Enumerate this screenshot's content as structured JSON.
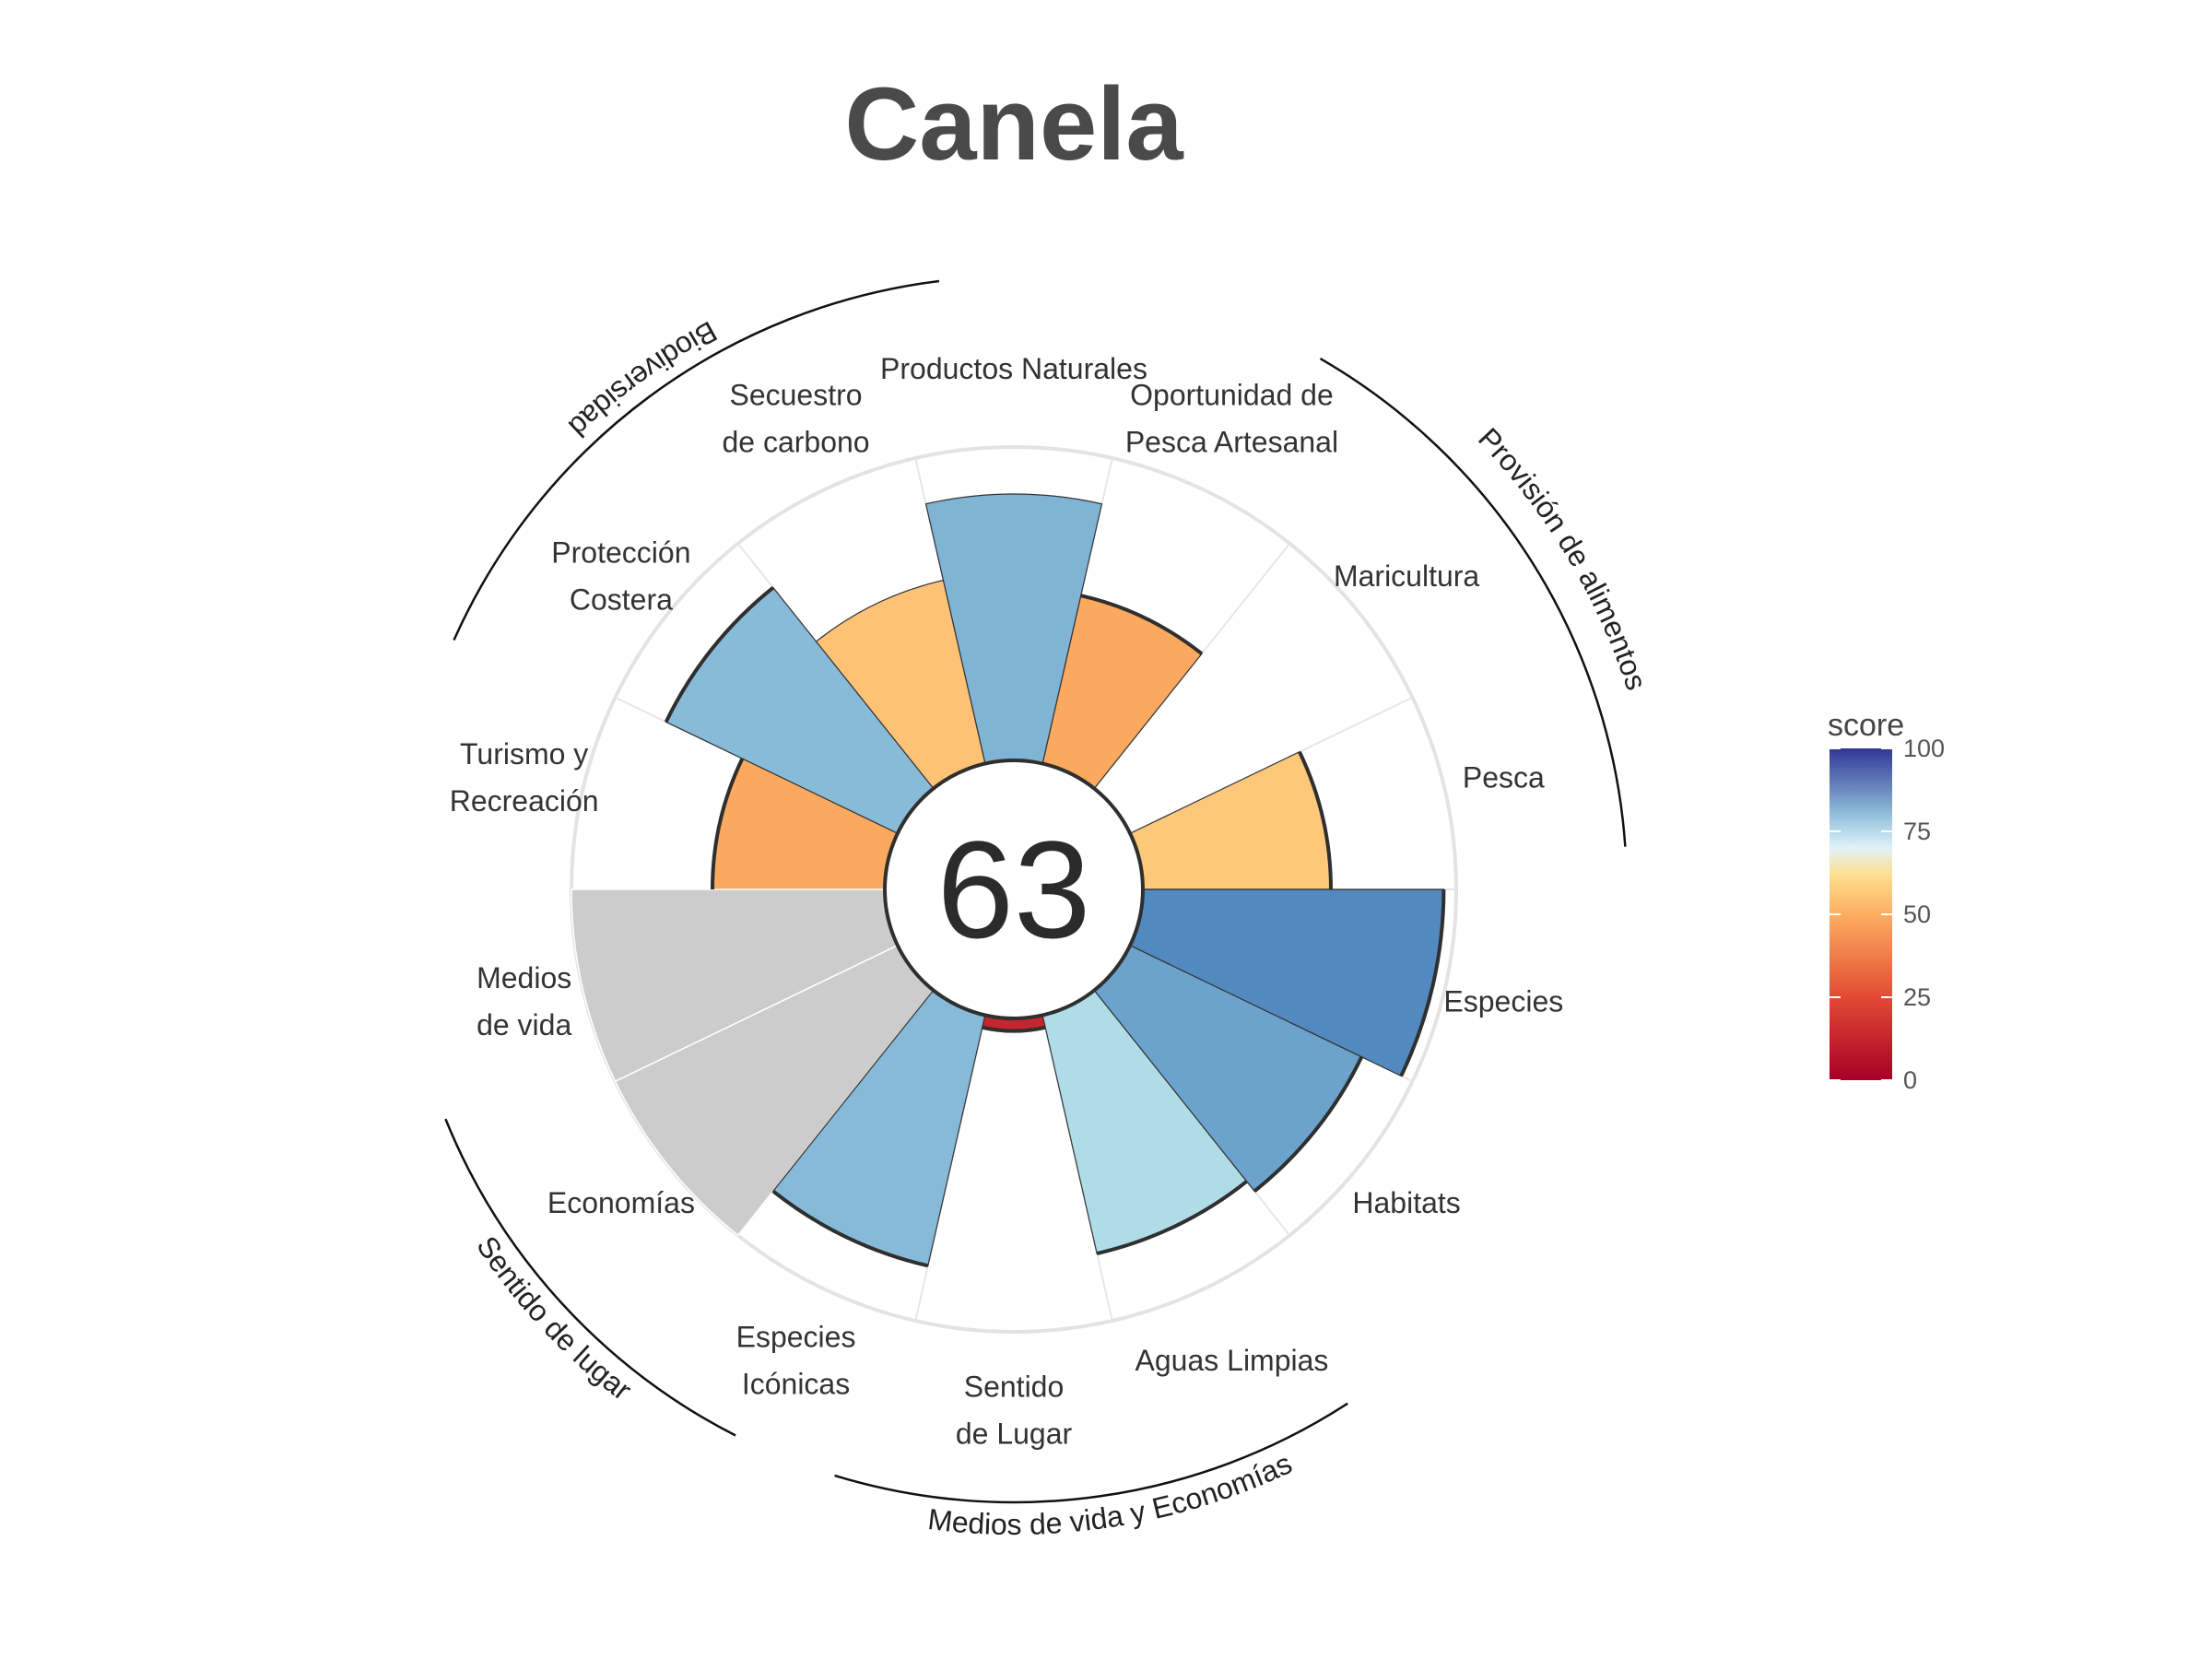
{
  "chart_data": {
    "type": "polar-bar",
    "title": "Canela",
    "center_score": "63",
    "radius_max": 100,
    "color_scale": {
      "title": "score",
      "ticks": [
        "100",
        "75",
        "50",
        "25",
        "0"
      ],
      "tick_values": [
        100,
        75,
        50,
        25,
        0
      ],
      "stops": [
        {
          "value": 0,
          "color": "#a50026"
        },
        {
          "value": 25,
          "color": "#e34a33"
        },
        {
          "value": 50,
          "color": "#fdae61"
        },
        {
          "value": 62,
          "color": "#fee090"
        },
        {
          "value": 70,
          "color": "#e0f3f8"
        },
        {
          "value": 80,
          "color": "#91bfdb"
        },
        {
          "value": 100,
          "color": "#313695"
        }
      ],
      "na_color": "#cccccc"
    },
    "goals": [
      {
        "name": "Pesca",
        "label_lines": [
          "Pesca"
        ],
        "value": 60,
        "color": "#fdc87a",
        "highlight": true
      },
      {
        "name": "Maricultura",
        "label_lines": [
          "Maricultura"
        ],
        "value": null,
        "color": null,
        "highlight": false
      },
      {
        "name": "Oportunidad de Pesca Artesanal",
        "label_lines": [
          "Oportunidad de",
          "Pesca Artesanal"
        ],
        "value": 55,
        "color": "#fba95f",
        "highlight": true
      },
      {
        "name": "Productos Naturales",
        "label_lines": [
          "Productos Naturales"
        ],
        "value": 85,
        "color": "#7fb4d5",
        "highlight": false
      },
      {
        "name": "Secuestro de carbono",
        "label_lines": [
          "Secuestro",
          "de carbono"
        ],
        "value": 60,
        "color": "#fdc276",
        "highlight": false
      },
      {
        "name": "Protección Costera",
        "label_lines": [
          "Protección",
          "Costera"
        ],
        "value": 82,
        "color": "#88bbd8",
        "highlight": true
      },
      {
        "name": "Turismo y Recreación",
        "label_lines": [
          "Turismo y",
          "Recreación"
        ],
        "value": 55,
        "color": "#fba95f",
        "highlight": true
      },
      {
        "name": "Medios de vida",
        "label_lines": [
          "Medios",
          "de vida"
        ],
        "value": null,
        "color": "#cccccc",
        "fill_na": true,
        "highlight": false
      },
      {
        "name": "Economías",
        "label_lines": [
          "Economías"
        ],
        "value": null,
        "color": "#cccccc",
        "fill_na": true,
        "highlight": false
      },
      {
        "name": "Especies Icónicas",
        "label_lines": [
          "Especies",
          "Icónicas"
        ],
        "value": 82,
        "color": "#86bad8",
        "highlight": true
      },
      {
        "name": "Sentido de Lugar",
        "label_lines": [
          "Sentido",
          "de Lugar"
        ],
        "value": 4,
        "color": "#c4252e",
        "highlight": true
      },
      {
        "name": "Aguas Limpias",
        "label_lines": [
          "Aguas Limpias"
        ],
        "value": 78,
        "color": "#b0dce8",
        "highlight": true
      },
      {
        "name": "Habitats",
        "label_lines": [
          "Habitats"
        ],
        "value": 82,
        "color": "#6ba3cc",
        "highlight": true
      },
      {
        "name": "Especies",
        "label_lines": [
          "Especies"
        ],
        "value": 96,
        "color": "#5289be",
        "highlight": true
      }
    ],
    "groups": [
      {
        "name": "Provisión de alimentos"
      },
      {
        "name": "Biodiversidad"
      },
      {
        "name": "Sentido de lugar"
      },
      {
        "name": "Medios de vida y Economías"
      }
    ],
    "grid": true,
    "legend_position": "right"
  }
}
